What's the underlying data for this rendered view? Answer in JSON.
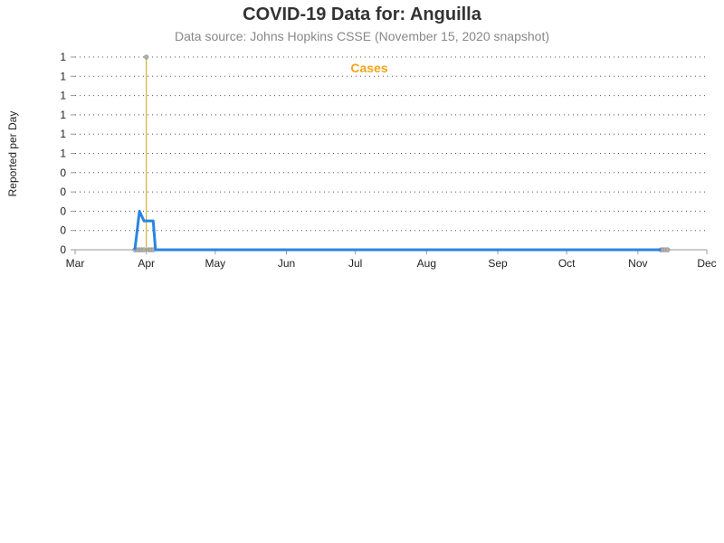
{
  "title": "COVID-19 Data for: Anguilla",
  "subtitle": "Data source: Johns Hopkins CSSE (November 15, 2020 snapshot)",
  "ylabel": "Reported per Day",
  "colors": {
    "cases": "#f2a51a",
    "deaths_line": "#2a85e0",
    "grid": "#555555",
    "axis": "#999999",
    "marker": "#b0b0b0"
  },
  "chart_data": {
    "type": "line",
    "title": "COVID-19 Data for: Anguilla",
    "subtitle": "Data source: Johns Hopkins CSSE (November 15, 2020 snapshot)",
    "xlabel": "",
    "ylabel": "Reported per Day",
    "ylim": [
      0,
      1
    ],
    "x_range": [
      "2020-03-01",
      "2020-12-01"
    ],
    "x_tick_labels": [
      "Mar",
      "Apr",
      "May",
      "Jun",
      "Jul",
      "Aug",
      "Sep",
      "Oct",
      "Nov",
      "Dec"
    ],
    "y_tick_labels": [
      "0",
      "0",
      "0",
      "0",
      "0",
      "1",
      "1",
      "1",
      "1",
      "1",
      "1"
    ],
    "grid": "horizontal dotted",
    "annotation": "Cases",
    "series": [
      {
        "name": "Cases",
        "style": "spikes",
        "points": [
          {
            "x": "2020-03-27",
            "y": 0
          },
          {
            "x": "2020-03-28",
            "y": 0
          },
          {
            "x": "2020-03-29",
            "y": 0
          },
          {
            "x": "2020-03-30",
            "y": 0
          },
          {
            "x": "2020-03-31",
            "y": 0
          },
          {
            "x": "2020-04-01",
            "y": 1
          },
          {
            "x": "2020-04-02",
            "y": 0
          },
          {
            "x": "2020-04-03",
            "y": 0
          },
          {
            "x": "2020-04-04",
            "y": 0
          },
          {
            "x": "2020-11-11",
            "y": 0
          },
          {
            "x": "2020-11-12",
            "y": 0
          },
          {
            "x": "2020-11-13",
            "y": 0
          },
          {
            "x": "2020-11-14",
            "y": 0
          }
        ]
      },
      {
        "style": "line",
        "points": [
          {
            "x": "2020-03-27",
            "y": 0
          },
          {
            "x": "2020-03-29",
            "y": 0.2
          },
          {
            "x": "2020-03-31",
            "y": 0.15
          },
          {
            "x": "2020-04-04",
            "y": 0.15
          },
          {
            "x": "2020-04-05",
            "y": 0
          },
          {
            "x": "2020-11-11",
            "y": 0
          }
        ]
      }
    ]
  }
}
